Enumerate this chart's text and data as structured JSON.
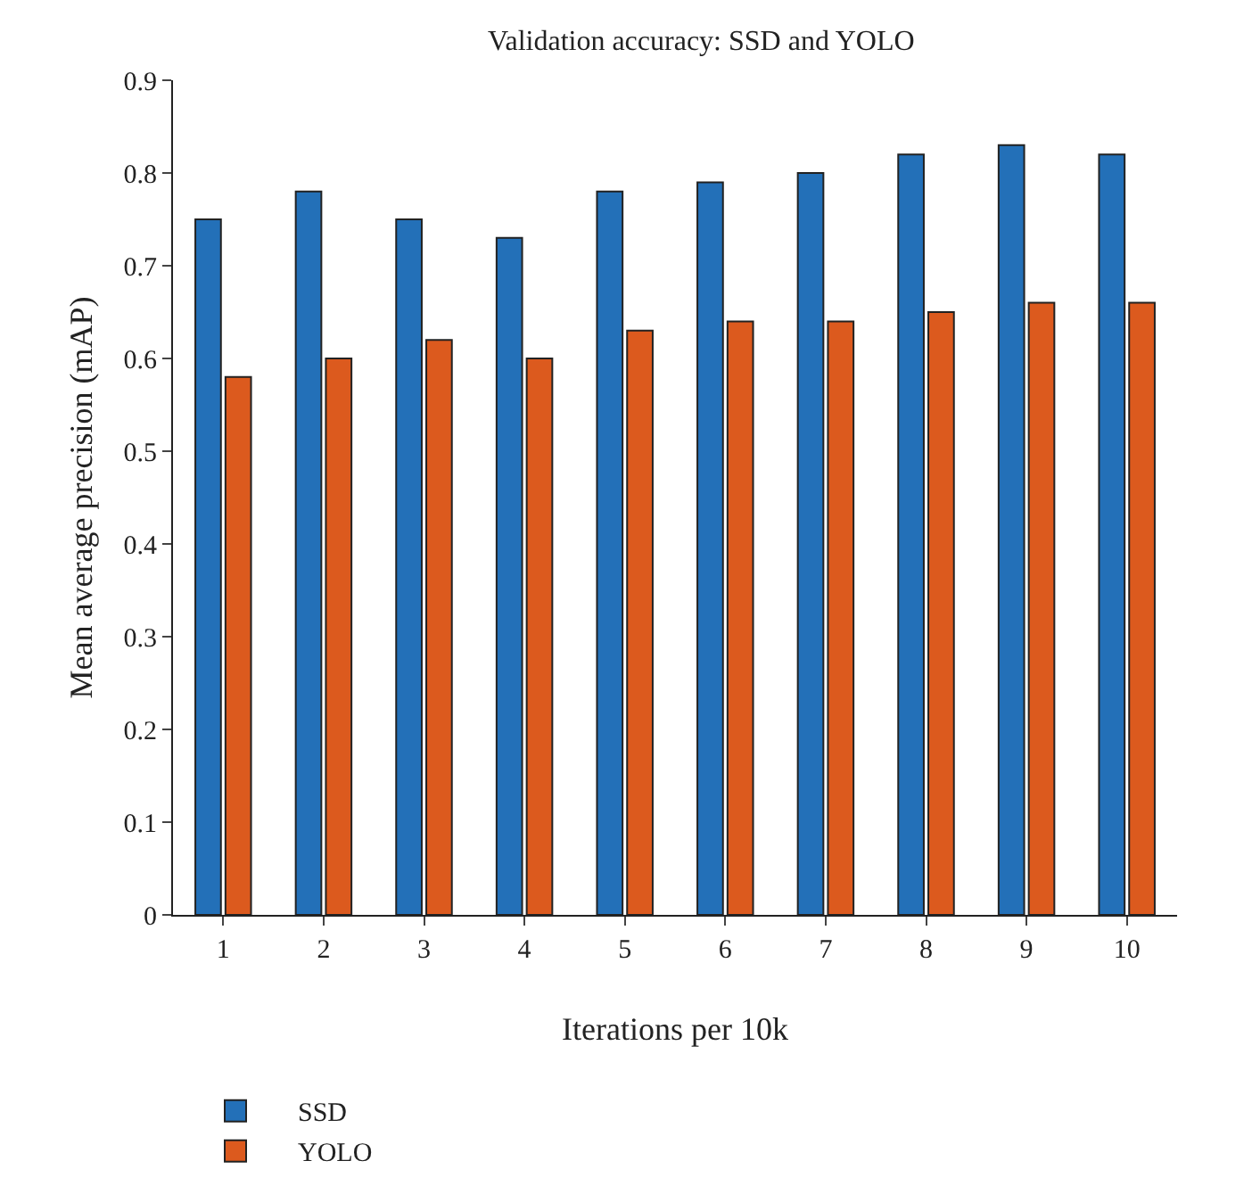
{
  "chart_data": {
    "type": "bar",
    "title": "Validation accuracy: SSD and YOLO",
    "xlabel": "Iterations per 10k",
    "ylabel": "Mean average precision (mAP)",
    "categories": [
      "1",
      "2",
      "3",
      "4",
      "5",
      "6",
      "7",
      "8",
      "9",
      "10"
    ],
    "series": [
      {
        "name": "SSD",
        "color": "#2370b8",
        "values": [
          0.75,
          0.78,
          0.75,
          0.73,
          0.78,
          0.79,
          0.8,
          0.82,
          0.83,
          0.82
        ]
      },
      {
        "name": "YOLO",
        "color": "#dc5a1e",
        "values": [
          0.58,
          0.6,
          0.62,
          0.6,
          0.63,
          0.64,
          0.64,
          0.65,
          0.66,
          0.66
        ]
      }
    ],
    "ylim": [
      0,
      0.9
    ],
    "yticks": [
      {
        "value": 0,
        "label": "0"
      },
      0.1,
      0.2,
      0.3,
      0.4,
      0.5,
      0.6,
      0.7,
      0.8,
      0.9
    ],
    "grid": false,
    "legend": "bottom left"
  }
}
